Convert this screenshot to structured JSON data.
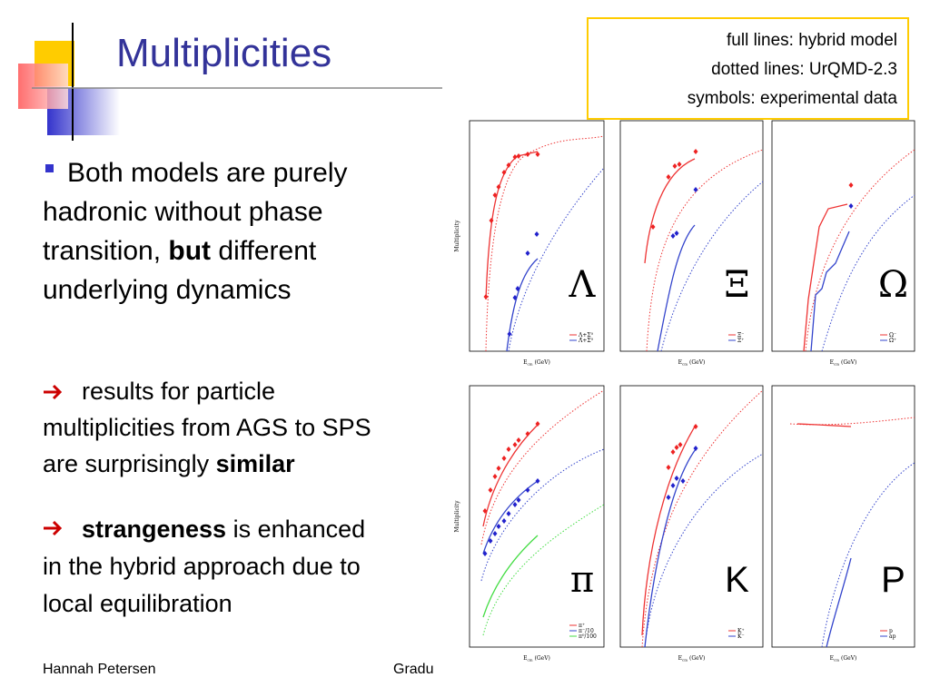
{
  "title": "Multiplicities",
  "legend_box": [
    "full lines: hybrid model",
    "dotted lines: UrQMD-2.3",
    "symbols: experimental data"
  ],
  "bullet": {
    "parts": [
      {
        "text": "Both models are purely"
      },
      {
        "text": "hadronic without phase"
      },
      {
        "text": "transition, "
      },
      {
        "text": "but",
        "bold": true
      },
      {
        "text": " different"
      },
      {
        "text": "underlying dynamics"
      }
    ]
  },
  "points": [
    {
      "parts": [
        {
          "text": "results for particle"
        },
        {
          "text": "multiplicities from AGS to SPS"
        },
        {
          "text": "are surprisingly "
        },
        {
          "text": "similar",
          "bold": true
        }
      ]
    },
    {
      "parts": [
        {
          "text": "strangeness",
          "bold": true
        },
        {
          "text": " is enhanced"
        },
        {
          "text": "in the hybrid approach due to"
        },
        {
          "text": "local equilibration"
        }
      ]
    }
  ],
  "footer": {
    "author": "Hannah Petersen",
    "event": "Gradu"
  },
  "figure": {
    "y_label": "Multiplicity",
    "x_label": {
      "symbol": "E",
      "sub": "cm",
      "unit": "(GeV)"
    },
    "panels": [
      {
        "symbol": "Λ",
        "legend": [
          "Λ+Σ⁰",
          "Λ̄+Σ̄⁰"
        ]
      },
      {
        "symbol": "Ξ",
        "legend": [
          "Ξ⁻",
          "Ξ̄⁺"
        ]
      },
      {
        "symbol": "Ω",
        "legend": [
          "Ω⁻",
          "Ω̄⁺"
        ]
      },
      {
        "symbol": "π",
        "legend": [
          "π⁺",
          "π⁻/10",
          "π⁰/100"
        ]
      },
      {
        "symbol": "K",
        "legend": [
          "K⁺",
          "K⁻"
        ]
      },
      {
        "symbol": "P",
        "legend": [
          "p",
          "ap"
        ]
      }
    ]
  }
}
